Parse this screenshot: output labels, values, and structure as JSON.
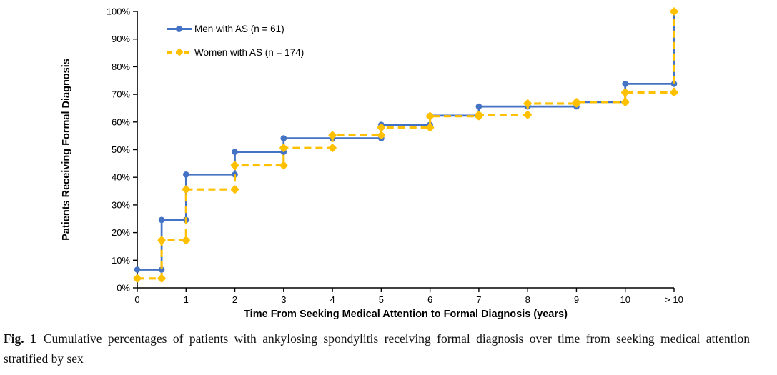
{
  "figure": {
    "caption": {
      "label": "Fig. 1",
      "text": "Cumulative percentages of patients with ankylosing spondylitis receiving formal diagnosis over time from seeking medical attention stratified by sex"
    }
  },
  "chart_data": {
    "type": "line",
    "subtype": "step",
    "title": "",
    "xlabel": "Time From Seeking Medical Attention to Formal Diagnosis (years)",
    "ylabel": "Patients Receiving Formal Diagnosis",
    "x_values": [
      0,
      0.5,
      1,
      2,
      3,
      4,
      5,
      6,
      7,
      8,
      9,
      10,
      11
    ],
    "x_note": "value 11 represents the '> 10' category",
    "x_tick_values": [
      0,
      1,
      2,
      3,
      4,
      5,
      6,
      7,
      8,
      9,
      10,
      11
    ],
    "x_tick_labels": [
      "0",
      "1",
      "2",
      "3",
      "4",
      "5",
      "6",
      "7",
      "8",
      "9",
      "10",
      "> 10"
    ],
    "y_ticks": [
      0,
      10,
      20,
      30,
      40,
      50,
      60,
      70,
      80,
      90,
      100
    ],
    "y_tick_labels": [
      "0%",
      "10%",
      "20%",
      "30%",
      "40%",
      "50%",
      "60%",
      "70%",
      "80%",
      "90%",
      "100%"
    ],
    "ylim": [
      0,
      100
    ],
    "xlim": [
      0,
      11
    ],
    "grid": false,
    "legend_position": "top-left-inside",
    "series": [
      {
        "name": "Men with AS (n = 61)",
        "color": "#4472C4",
        "marker": "circle",
        "line_style": "solid",
        "values": [
          6.6,
          24.6,
          41.0,
          49.2,
          54.1,
          54.1,
          59.0,
          62.3,
          65.6,
          65.6,
          67.2,
          73.8,
          100
        ]
      },
      {
        "name": "Women with AS (n = 174)",
        "color": "#FFC000",
        "marker": "diamond",
        "line_style": "dashed",
        "values": [
          3.4,
          17.2,
          35.6,
          44.3,
          50.6,
          55.2,
          58.0,
          62.1,
          62.6,
          66.7,
          67.2,
          70.7,
          100
        ]
      }
    ]
  }
}
